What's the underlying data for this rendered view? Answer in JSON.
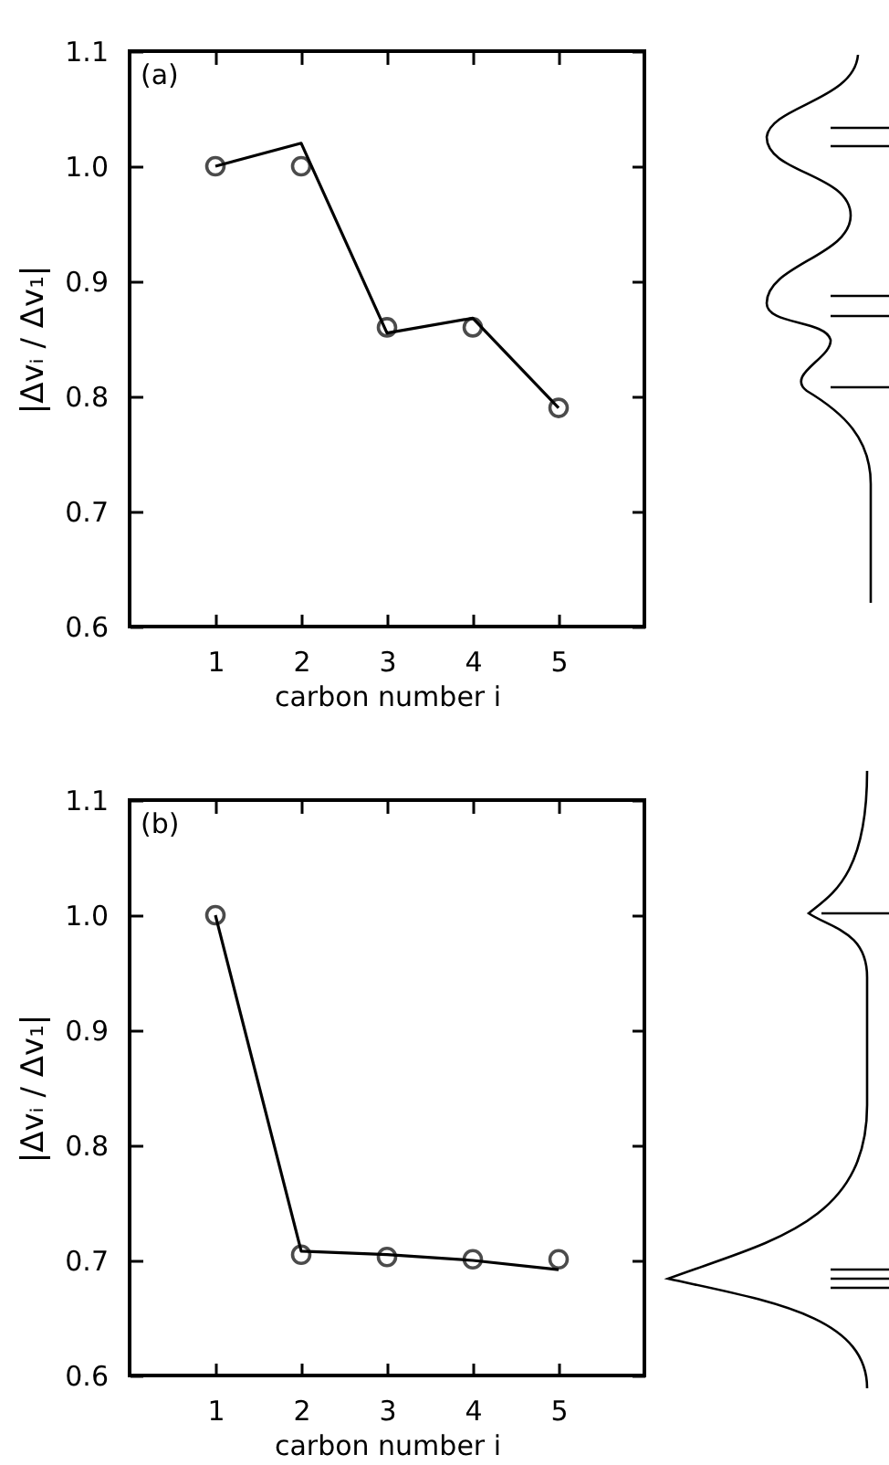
{
  "chart_data": [
    {
      "type": "line",
      "xlabel": "carbon number i",
      "ylabel": "|Δvᵢ / Δv₁|",
      "annotations": [
        "(a)"
      ],
      "x": [
        1,
        2,
        3,
        4,
        5
      ],
      "xlim": [
        0,
        6
      ],
      "xticks": [
        1,
        2,
        3,
        4,
        5
      ],
      "ylim": [
        0.6,
        1.1
      ],
      "yticks": [
        0.6,
        0.7,
        0.8,
        0.9,
        {
          "value": 1.0,
          "label": "1.0"
        },
        1.1
      ],
      "series": [
        {
          "color": "#000000",
          "marker": "none",
          "line_style": "solid",
          "values": [
            1.0,
            1.02,
            0.855,
            0.868,
            0.79
          ]
        },
        {
          "type": "scatter",
          "color": "#000000",
          "marker": "circle",
          "values": [
            1.0,
            1.0,
            0.86,
            0.86,
            0.79
          ]
        }
      ]
    },
    {
      "type": "line",
      "xlabel": "carbon number i",
      "ylabel": "|Δvᵢ / Δv₁|",
      "annotations": [
        "(b)"
      ],
      "x": [
        1,
        2,
        3,
        4,
        5
      ],
      "xlim": [
        0,
        6
      ],
      "xticks": [
        1,
        2,
        3,
        4,
        5
      ],
      "ylim": [
        0.6,
        1.1
      ],
      "yticks": [
        0.6,
        0.7,
        0.8,
        0.9,
        {
          "value": 1.0,
          "label": "1.0"
        },
        1.1
      ],
      "series": [
        {
          "color": "#000000",
          "marker": "none",
          "line_style": "solid",
          "values": [
            1.0,
            0.708,
            0.705,
            0.7,
            0.692
          ]
        },
        {
          "type": "scatter",
          "color": "#000000",
          "marker": "circle",
          "values": [
            1.0,
            0.705,
            0.703,
            0.701,
            0.701
          ]
        }
      ]
    }
  ]
}
